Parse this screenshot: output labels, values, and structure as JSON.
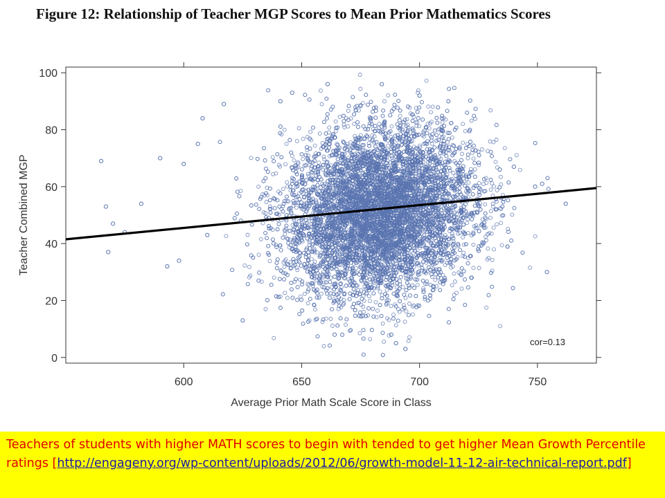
{
  "figure": {
    "title": "Figure 12: Relationship of Teacher MGP Scores to Mean Prior Mathematics Scores"
  },
  "chart_data": {
    "type": "scatter",
    "xlabel": "Average Prior Math Scale Score in Class",
    "ylabel": "Teacher Combined MGP",
    "xlim": [
      550,
      775
    ],
    "ylim": [
      -2,
      102
    ],
    "x_ticks": [
      600,
      650,
      700,
      750
    ],
    "y_ticks": [
      0,
      20,
      40,
      60,
      80,
      100
    ],
    "grid": false,
    "annotation": "cor=0.13",
    "point_color": "#5a74b0",
    "line_color": "#000000",
    "correlation": 0.13,
    "cloud": {
      "x_mean": 683,
      "x_sd": 20,
      "y_mean": 51,
      "y_sd": 15,
      "n_points": 9000
    },
    "fit_line": {
      "x": [
        550,
        775
      ],
      "y": [
        41.5,
        59.5
      ]
    },
    "outliers": [
      {
        "x": 565,
        "y": 69
      },
      {
        "x": 567,
        "y": 53
      },
      {
        "x": 568,
        "y": 37
      },
      {
        "x": 570,
        "y": 47
      },
      {
        "x": 575,
        "y": 44
      },
      {
        "x": 582,
        "y": 54
      },
      {
        "x": 590,
        "y": 70
      },
      {
        "x": 593,
        "y": 32
      },
      {
        "x": 598,
        "y": 34
      },
      {
        "x": 600,
        "y": 68
      },
      {
        "x": 606,
        "y": 75
      },
      {
        "x": 608,
        "y": 84
      },
      {
        "x": 610,
        "y": 43
      },
      {
        "x": 617,
        "y": 89
      },
      {
        "x": 625,
        "y": 13
      },
      {
        "x": 641,
        "y": 90
      },
      {
        "x": 646,
        "y": 93
      },
      {
        "x": 661,
        "y": 96
      },
      {
        "x": 664,
        "y": 8
      },
      {
        "x": 684,
        "y": 96
      },
      {
        "x": 688,
        "y": 8
      },
      {
        "x": 690,
        "y": 5
      },
      {
        "x": 694,
        "y": 3
      },
      {
        "x": 700,
        "y": 92
      },
      {
        "x": 734,
        "y": 66
      },
      {
        "x": 740,
        "y": 67
      },
      {
        "x": 749,
        "y": 60
      },
      {
        "x": 752,
        "y": 61
      },
      {
        "x": 754,
        "y": 30
      },
      {
        "x": 762,
        "y": 54
      }
    ]
  },
  "caption": {
    "text_before": "Teachers of students with higher MATH scores to begin with tended to get higher Mean Growth Percentile ratings [",
    "link_text": "http://engageny.org/wp-content/uploads/2012/06/growth-model-11-12-air-technical-report.pdf",
    "text_after": "]",
    "text_color": "#e00000",
    "link_color": "#1a1aa6",
    "background_color": "#ffff00"
  }
}
